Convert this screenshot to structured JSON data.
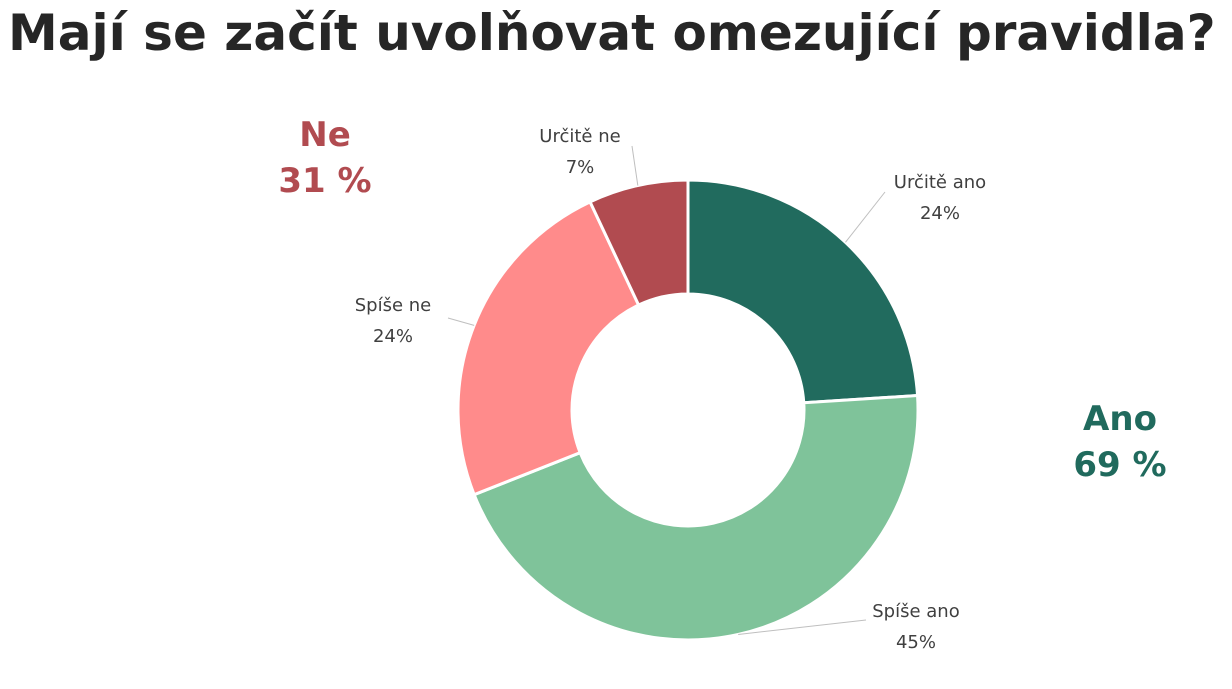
{
  "chart_data": {
    "type": "pie",
    "title": "Mají se začít uvolňovat omezující pravidla?",
    "categories": [
      "Určitě ano",
      "Spíše ano",
      "Spíše ne",
      "Určitě ne"
    ],
    "values": [
      24,
      45,
      24,
      7
    ],
    "value_labels": [
      "24%",
      "45%",
      "24%",
      "7%"
    ],
    "colors": [
      "#216b5e",
      "#7fc39a",
      "#ff8b8b",
      "#b14b50"
    ],
    "donut": true,
    "groups": [
      {
        "name": "Ne",
        "value_label": "31 %",
        "color": "#b14b50"
      },
      {
        "name": "Ano",
        "value_label": "69 %",
        "color": "#206a5d"
      }
    ]
  }
}
